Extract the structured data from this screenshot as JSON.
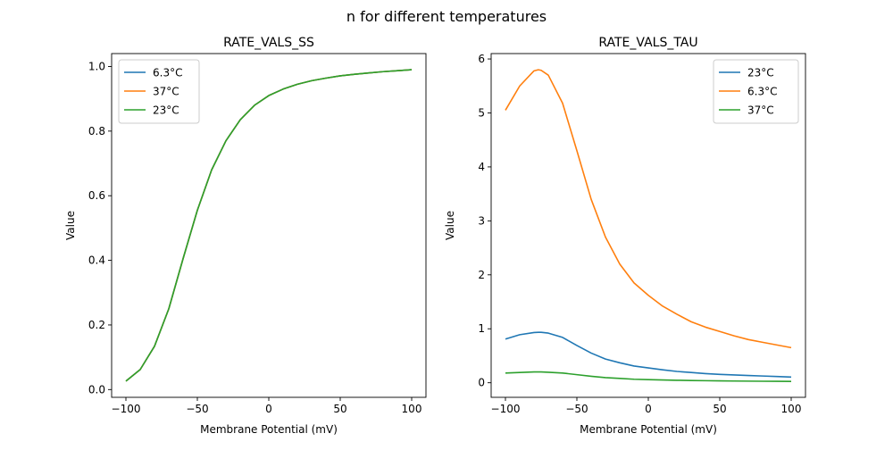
{
  "figure": {
    "suptitle": "n for different temperatures"
  },
  "chart_data": [
    {
      "type": "line",
      "title": "RATE_VALS_SS",
      "xlabel": "Membrane Potential (mV)",
      "ylabel": "Value",
      "xlim": [
        -110,
        110
      ],
      "ylim": [
        -0.024,
        1.04
      ],
      "xticks": [
        -100,
        -50,
        0,
        50,
        100
      ],
      "yticks": [
        0.0,
        0.2,
        0.4,
        0.6,
        0.8,
        1.0
      ],
      "grid": false,
      "legend": "top-left",
      "x": [
        -100,
        -90,
        -80,
        -70,
        -60,
        -50,
        -40,
        -30,
        -20,
        -10,
        0,
        10,
        20,
        30,
        40,
        50,
        60,
        70,
        80,
        90,
        100
      ],
      "series": [
        {
          "name": "6.3°C",
          "color": "#1f77b4",
          "values": [
            0.026,
            0.062,
            0.134,
            0.25,
            0.405,
            0.555,
            0.68,
            0.77,
            0.835,
            0.88,
            0.91,
            0.93,
            0.945,
            0.956,
            0.964,
            0.971,
            0.976,
            0.98,
            0.984,
            0.987,
            0.99
          ]
        },
        {
          "name": "37°C",
          "color": "#ff7f0e",
          "values": [
            0.026,
            0.062,
            0.134,
            0.25,
            0.405,
            0.555,
            0.68,
            0.77,
            0.835,
            0.88,
            0.91,
            0.93,
            0.945,
            0.956,
            0.964,
            0.971,
            0.976,
            0.98,
            0.984,
            0.987,
            0.99
          ]
        },
        {
          "name": "23°C",
          "color": "#2ca02c",
          "values": [
            0.026,
            0.062,
            0.134,
            0.25,
            0.405,
            0.555,
            0.68,
            0.77,
            0.835,
            0.88,
            0.91,
            0.93,
            0.945,
            0.956,
            0.964,
            0.971,
            0.976,
            0.98,
            0.984,
            0.987,
            0.99
          ]
        }
      ]
    },
    {
      "type": "line",
      "title": "RATE_VALS_TAU",
      "xlabel": "Membrane Potential (mV)",
      "ylabel": "Value",
      "xlim": [
        -110,
        110
      ],
      "ylim": [
        -0.27,
        6.1
      ],
      "xticks": [
        -100,
        -50,
        0,
        50,
        100
      ],
      "yticks": [
        0,
        1,
        2,
        3,
        4,
        5,
        6
      ],
      "grid": false,
      "legend": "top-right",
      "x": [
        -100,
        -90,
        -80,
        -77,
        -75,
        -70,
        -60,
        -50,
        -40,
        -30,
        -20,
        -10,
        0,
        10,
        20,
        30,
        40,
        50,
        60,
        70,
        80,
        90,
        100
      ],
      "series": [
        {
          "name": "23°C",
          "color": "#1f77b4",
          "values": [
            0.81,
            0.89,
            0.93,
            0.935,
            0.935,
            0.92,
            0.84,
            0.69,
            0.55,
            0.44,
            0.37,
            0.31,
            0.275,
            0.24,
            0.21,
            0.19,
            0.17,
            0.155,
            0.145,
            0.135,
            0.125,
            0.115,
            0.105
          ]
        },
        {
          "name": "6.3°C",
          "color": "#ff7f0e",
          "values": [
            5.05,
            5.5,
            5.78,
            5.8,
            5.79,
            5.7,
            5.18,
            4.3,
            3.4,
            2.7,
            2.2,
            1.85,
            1.62,
            1.42,
            1.27,
            1.13,
            1.03,
            0.95,
            0.87,
            0.8,
            0.75,
            0.7,
            0.65
          ]
        },
        {
          "name": "37°C",
          "color": "#2ca02c",
          "values": [
            0.18,
            0.19,
            0.2,
            0.2,
            0.2,
            0.195,
            0.18,
            0.15,
            0.12,
            0.095,
            0.08,
            0.065,
            0.058,
            0.051,
            0.046,
            0.042,
            0.038,
            0.035,
            0.032,
            0.03,
            0.028,
            0.026,
            0.024
          ]
        }
      ]
    }
  ]
}
